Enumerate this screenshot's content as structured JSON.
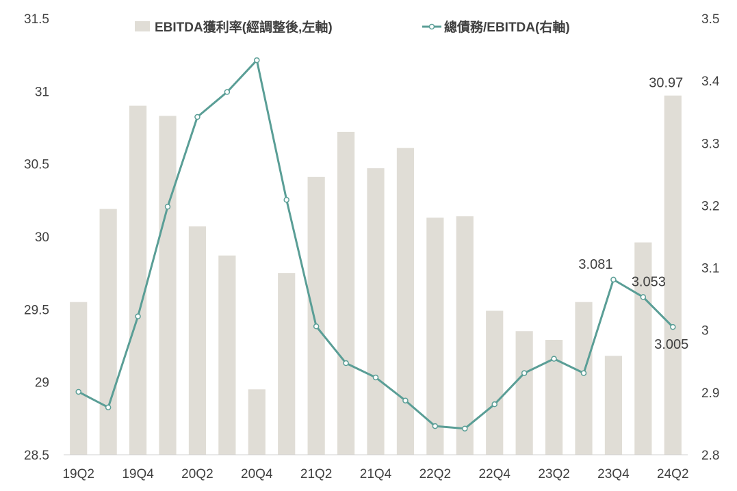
{
  "chart_data": {
    "type": "bar",
    "categories": [
      "19Q2",
      "19Q3",
      "19Q4",
      "20Q1",
      "20Q2",
      "20Q3",
      "20Q4",
      "21Q1",
      "21Q2",
      "21Q3",
      "21Q4",
      "22Q1",
      "22Q2",
      "22Q3",
      "22Q4",
      "23Q1",
      "23Q2",
      "23Q3",
      "23Q4",
      "24Q1",
      "24Q2"
    ],
    "x_tick_labels": [
      "19Q2",
      "19Q4",
      "20Q2",
      "20Q4",
      "21Q2",
      "21Q4",
      "22Q2",
      "22Q4",
      "23Q2",
      "23Q4",
      "24Q2"
    ],
    "series": [
      {
        "name": "EBITDA獲利率(經調整後,左軸)",
        "type": "bar",
        "axis": "left",
        "color": "#e0ddd6",
        "values": [
          29.55,
          30.19,
          30.9,
          30.83,
          30.07,
          29.87,
          28.95,
          29.75,
          30.41,
          30.72,
          30.47,
          30.61,
          30.13,
          30.14,
          29.49,
          29.35,
          29.29,
          29.55,
          29.18,
          29.96,
          30.97
        ]
      },
      {
        "name": "總債務/EBITDA(右軸)",
        "type": "line",
        "axis": "right",
        "color": "#5a9e96",
        "values": [
          2.901,
          2.876,
          3.022,
          3.198,
          3.342,
          3.382,
          3.433,
          3.209,
          3.006,
          2.947,
          2.924,
          2.887,
          2.846,
          2.842,
          2.881,
          2.931,
          2.954,
          2.931,
          3.081,
          3.053,
          3.005
        ]
      }
    ],
    "data_labels": [
      {
        "series": 0,
        "index": 20,
        "text": "30.97"
      },
      {
        "series": 1,
        "index": 18,
        "text": "3.081"
      },
      {
        "series": 1,
        "index": 19,
        "text": "3.053"
      },
      {
        "series": 1,
        "index": 20,
        "text": "3.005"
      }
    ],
    "y_left": {
      "min": 28.5,
      "max": 31.5,
      "ticks": [
        "28.5",
        "29",
        "29.5",
        "30",
        "30.5",
        "31",
        "31.5"
      ]
    },
    "y_right": {
      "min": 2.8,
      "max": 3.5,
      "ticks": [
        "2.8",
        "2.9",
        "3",
        "3.1",
        "3.2",
        "3.3",
        "3.4",
        "3.5"
      ]
    },
    "title": "",
    "xlabel": "",
    "ylabel": "",
    "grid": false,
    "legend_position": "top-center"
  }
}
